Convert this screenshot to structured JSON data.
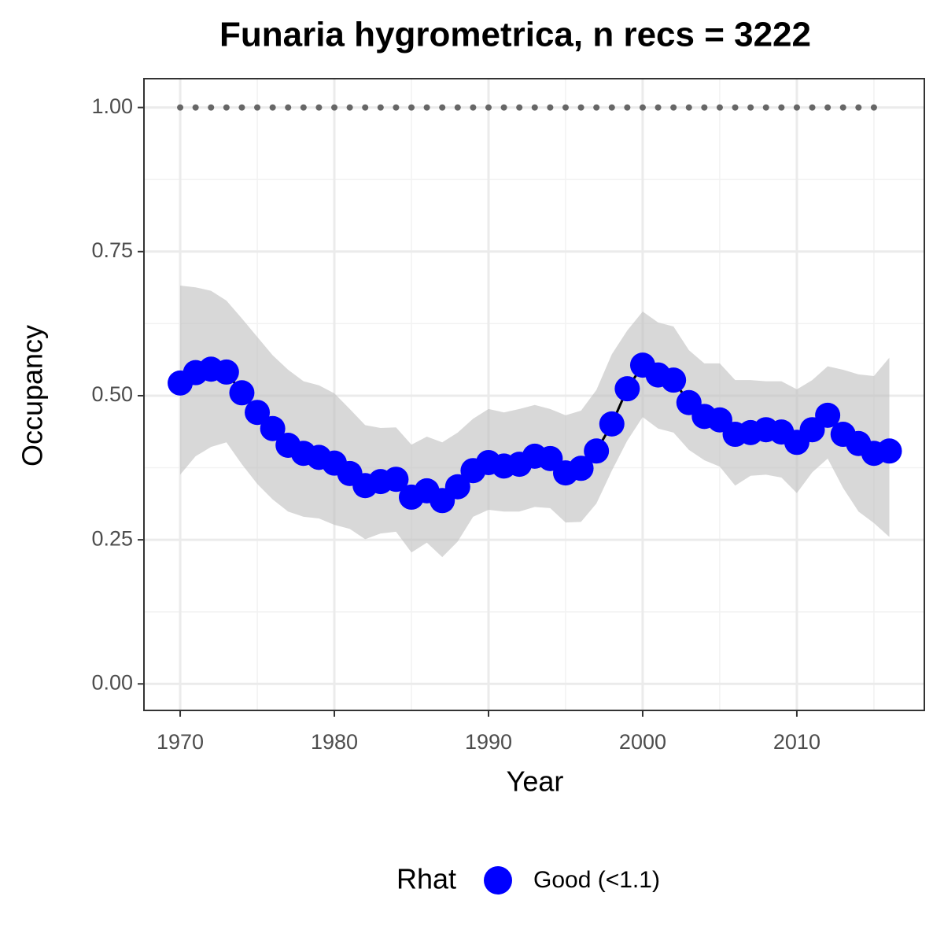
{
  "chart_data": {
    "type": "line",
    "title": "Funaria hygrometrica, n recs = 3222",
    "x_label": "Year",
    "y_label": "Occupancy",
    "legend_title": "Rhat",
    "legend_position": "bottom",
    "grid": true,
    "xlim": [
      1967.65,
      2018.27
    ],
    "ylim": [
      -0.046,
      1.05
    ],
    "xticks": [
      1970,
      1980,
      1990,
      2000,
      2010
    ],
    "minor_xticks": [
      1975,
      1985,
      1995,
      2005,
      2015
    ],
    "yticks": [
      {
        "value": 0,
        "label": "0.00"
      },
      0.25,
      {
        "value": 0.5,
        "label": "0.50"
      },
      0.75,
      {
        "value": 1,
        "label": "1.00"
      }
    ],
    "minor_yticks": [
      0.125,
      0.375,
      0.625,
      0.875
    ],
    "x": [
      1970,
      1971,
      1972,
      1973,
      1974,
      1975,
      1976,
      1977,
      1978,
      1979,
      1980,
      1981,
      1982,
      1983,
      1984,
      1985,
      1986,
      1987,
      1988,
      1989,
      1990,
      1991,
      1992,
      1993,
      1994,
      1995,
      1996,
      1997,
      1998,
      1999,
      2000,
      2001,
      2002,
      2003,
      2004,
      2005,
      2006,
      2007,
      2008,
      2009,
      2010,
      2011,
      2012,
      2013,
      2014,
      2015,
      2016
    ],
    "series": [
      {
        "name": "Good (<1.1)",
        "color": "#0000ff",
        "line_color": "#000000",
        "band_color": "#bebebe",
        "values": [
          0.522,
          0.54,
          0.546,
          0.541,
          0.505,
          0.471,
          0.443,
          0.414,
          0.4,
          0.393,
          0.383,
          0.365,
          0.344,
          0.351,
          0.355,
          0.324,
          0.335,
          0.318,
          0.342,
          0.37,
          0.384,
          0.378,
          0.381,
          0.395,
          0.391,
          0.366,
          0.374,
          0.404,
          0.451,
          0.512,
          0.553,
          0.536,
          0.527,
          0.488,
          0.464,
          0.458,
          0.433,
          0.436,
          0.441,
          0.437,
          0.419,
          0.441,
          0.466,
          0.433,
          0.417,
          0.4,
          0.404
        ],
        "upper": [
          0.691,
          0.688,
          0.682,
          0.665,
          0.634,
          0.602,
          0.57,
          0.545,
          0.525,
          0.518,
          0.504,
          0.477,
          0.449,
          0.444,
          0.445,
          0.415,
          0.429,
          0.419,
          0.436,
          0.46,
          0.477,
          0.471,
          0.477,
          0.484,
          0.477,
          0.466,
          0.474,
          0.51,
          0.572,
          0.613,
          0.646,
          0.627,
          0.62,
          0.579,
          0.556,
          0.556,
          0.527,
          0.527,
          0.525,
          0.525,
          0.511,
          0.527,
          0.551,
          0.545,
          0.537,
          0.534,
          0.566
        ],
        "lower": [
          0.363,
          0.395,
          0.411,
          0.419,
          0.381,
          0.347,
          0.32,
          0.299,
          0.29,
          0.287,
          0.276,
          0.269,
          0.251,
          0.261,
          0.264,
          0.228,
          0.245,
          0.22,
          0.247,
          0.29,
          0.302,
          0.299,
          0.299,
          0.307,
          0.305,
          0.28,
          0.281,
          0.313,
          0.37,
          0.422,
          0.463,
          0.443,
          0.436,
          0.406,
          0.388,
          0.377,
          0.344,
          0.361,
          0.363,
          0.358,
          0.331,
          0.367,
          0.391,
          0.34,
          0.299,
          0.279,
          0.255
        ]
      }
    ],
    "reference": {
      "color": "#666666",
      "x": [
        1970,
        1971,
        1972,
        1973,
        1974,
        1975,
        1976,
        1977,
        1978,
        1979,
        1980,
        1981,
        1982,
        1983,
        1984,
        1985,
        1986,
        1987,
        1988,
        1989,
        1990,
        1991,
        1992,
        1993,
        1994,
        1995,
        1996,
        1997,
        1998,
        1999,
        2000,
        2001,
        2002,
        2003,
        2004,
        2005,
        2006,
        2007,
        2008,
        2009,
        2010,
        2011,
        2012,
        2013,
        2014,
        2015
      ],
      "values": [
        1,
        1,
        1,
        1,
        1,
        1,
        1,
        1,
        1,
        1,
        1,
        1,
        1,
        1,
        1,
        1,
        1,
        1,
        1,
        1,
        1,
        1,
        1,
        1,
        1,
        1,
        1,
        1,
        1,
        1,
        1,
        1,
        1,
        1,
        1,
        1,
        1,
        1,
        1,
        1,
        1,
        1,
        1,
        1,
        1,
        1
      ]
    }
  }
}
